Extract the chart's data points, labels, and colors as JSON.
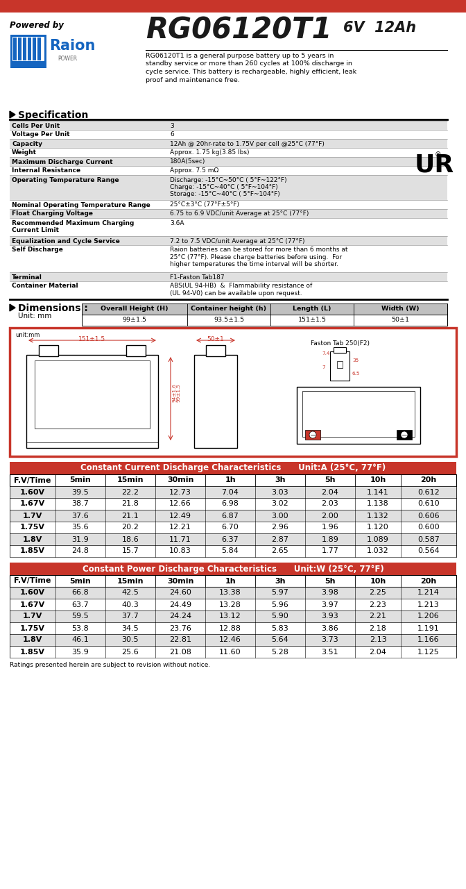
{
  "title_model": "RG06120T1",
  "title_voltage": "6V",
  "title_ah": "12Ah",
  "powered_by": "Powered by",
  "desc_lines": [
    "RG06120T1 is a general purpose battery up to 5 years in",
    "standby service or more than 260 cycles at 100% discharge in",
    "cycle service. This battery is rechargeable, highly efficient, leak",
    "proof and maintenance free."
  ],
  "spec_title": "Specification",
  "specs": [
    [
      "Cells Per Unit",
      "3"
    ],
    [
      "Voltage Per Unit",
      "6"
    ],
    [
      "Capacity",
      "12Ah @ 20hr-rate to 1.75V per cell @25°C (77°F)"
    ],
    [
      "Weight",
      "Approx. 1.75 kg(3.85 lbs)"
    ],
    [
      "Maximum Discharge Current",
      "180A(5sec)"
    ],
    [
      "Internal Resistance",
      "Approx. 7.5 mΩ"
    ],
    [
      "Operating Temperature Range",
      "Discharge: -15°C~50°C ( 5°F~122°F)\nCharge: -15°C~40°C ( 5°F~104°F)\nStorage: -15°C~40°C ( 5°F~104°F)"
    ],
    [
      "Nominal Operating Temperature Range",
      "25°C±3°C (77°F±5°F)"
    ],
    [
      "Float Charging Voltage",
      "6.75 to 6.9 VDC/unit Average at 25°C (77°F)"
    ],
    [
      "Recommended Maximum Charging\nCurrent Limit",
      "3.6A"
    ],
    [
      "Equalization and Cycle Service",
      "7.2 to 7.5 VDC/unit Average at 25°C (77°F)"
    ],
    [
      "Self Discharge",
      "Raion batteries can be stored for more than 6 months at\n25°C (77°F). Please charge batteries before using.  For\nhigher temperatures the time interval will be shorter."
    ],
    [
      "Terminal",
      "F1-Faston Tab187"
    ],
    [
      "Container Material",
      "ABS(UL 94-HB)  &  Flammability resistance of\n(UL 94-V0) can be available upon request."
    ]
  ],
  "spec_row_heights": [
    13,
    13,
    13,
    13,
    13,
    13,
    36,
    13,
    13,
    26,
    13,
    39,
    13,
    26
  ],
  "dim_title": "Dimensions :",
  "dim_unit": "Unit: mm",
  "dim_headers": [
    "Overall Height (H)",
    "Container height (h)",
    "Length (L)",
    "Width (W)"
  ],
  "dim_values": [
    "99±1.5",
    "93.5±1.5",
    "151±1.5",
    "50±1"
  ],
  "cc_title": "Constant Current Discharge Characteristics",
  "cc_unit": "Unit:A (25°C, 77°F)",
  "cc_headers": [
    "F.V/Time",
    "5min",
    "15min",
    "30min",
    "1h",
    "3h",
    "5h",
    "10h",
    "20h"
  ],
  "cc_data": [
    [
      "1.60V",
      "39.5",
      "22.2",
      "12.73",
      "7.04",
      "3.03",
      "2.04",
      "1.141",
      "0.612"
    ],
    [
      "1.67V",
      "38.7",
      "21.8",
      "12.66",
      "6.98",
      "3.02",
      "2.03",
      "1.138",
      "0.610"
    ],
    [
      "1.7V",
      "37.6",
      "21.1",
      "12.49",
      "6.87",
      "3.00",
      "2.00",
      "1.132",
      "0.606"
    ],
    [
      "1.75V",
      "35.6",
      "20.2",
      "12.21",
      "6.70",
      "2.96",
      "1.96",
      "1.120",
      "0.600"
    ],
    [
      "1.8V",
      "31.9",
      "18.6",
      "11.71",
      "6.37",
      "2.87",
      "1.89",
      "1.089",
      "0.587"
    ],
    [
      "1.85V",
      "24.8",
      "15.7",
      "10.83",
      "5.84",
      "2.65",
      "1.77",
      "1.032",
      "0.564"
    ]
  ],
  "cp_title": "Constant Power Discharge Characteristics",
  "cp_unit": "Unit:W (25°C, 77°F)",
  "cp_headers": [
    "F.V/Time",
    "5min",
    "15min",
    "30min",
    "1h",
    "3h",
    "5h",
    "10h",
    "20h"
  ],
  "cp_data": [
    [
      "1.60V",
      "66.8",
      "42.5",
      "24.60",
      "13.38",
      "5.97",
      "3.98",
      "2.25",
      "1.214"
    ],
    [
      "1.67V",
      "63.7",
      "40.3",
      "24.49",
      "13.28",
      "5.96",
      "3.97",
      "2.23",
      "1.213"
    ],
    [
      "1.7V",
      "59.5",
      "37.7",
      "24.24",
      "13.12",
      "5.90",
      "3.93",
      "2.21",
      "1.206"
    ],
    [
      "1.75V",
      "53.8",
      "34.5",
      "23.76",
      "12.88",
      "5.83",
      "3.86",
      "2.18",
      "1.191"
    ],
    [
      "1.8V",
      "46.1",
      "30.5",
      "22.81",
      "12.46",
      "5.64",
      "3.73",
      "2.13",
      "1.166"
    ],
    [
      "1.85V",
      "35.9",
      "25.6",
      "21.08",
      "11.60",
      "5.28",
      "3.51",
      "2.04",
      "1.125"
    ]
  ],
  "footer": "Ratings presented herein are subject to revision without notice.",
  "red_color": "#C8352A",
  "table_header_bg": "#C8352A",
  "row_alt_bg": "#E0E0E0",
  "row_white_bg": "#FFFFFF",
  "dim_header_bg": "#C0C0C0"
}
